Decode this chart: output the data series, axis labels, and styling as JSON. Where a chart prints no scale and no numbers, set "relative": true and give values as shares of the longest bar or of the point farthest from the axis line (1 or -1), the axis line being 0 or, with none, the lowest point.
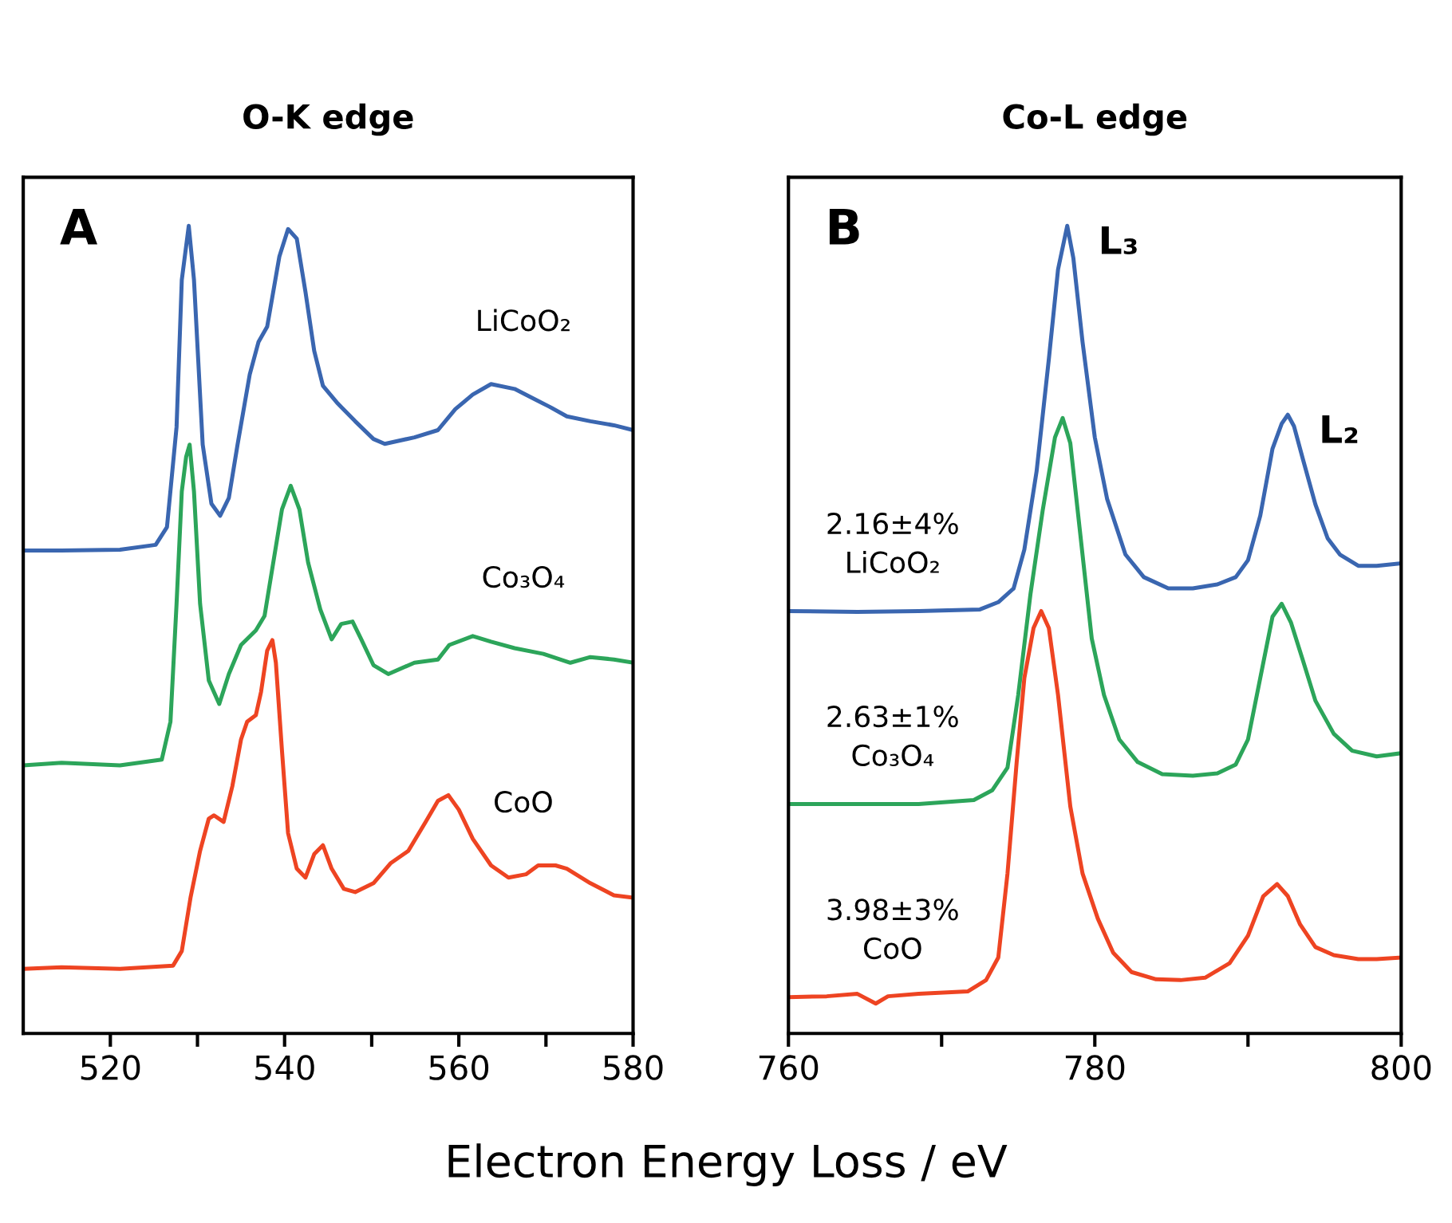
{
  "chart_data": [
    {
      "type": "line",
      "title": "O-K edge",
      "xlabel": "Electron Energy Loss / eV",
      "relative": true,
      "xlim": [
        510,
        580
      ],
      "xticks": [
        520,
        {
          "value": 530,
          "label": null
        },
        540,
        {
          "value": 550,
          "label": null
        },
        560,
        {
          "value": 570,
          "label": null
        },
        580
      ],
      "tick_labels": "x",
      "grid": false,
      "legend": false,
      "line_style": "solid",
      "marker": "none",
      "annotations": [
        "A"
      ],
      "series": [
        {
          "name": "LiCoO₂",
          "color": "#3a66b0",
          "x": [
            510.0,
            514.4,
            521.1,
            525.2,
            526.5,
            527.6,
            528.2,
            529.0,
            529.6,
            530.6,
            531.6,
            532.6,
            533.6,
            534.6,
            536.0,
            537.0,
            538.0,
            539.4,
            540.4,
            541.4,
            542.4,
            543.4,
            544.4,
            546.1,
            548.1,
            550.2,
            551.5,
            554.9,
            557.6,
            559.6,
            561.6,
            563.7,
            566.4,
            568.4,
            570.4,
            572.4,
            575.1,
            577.8,
            580.0
          ],
          "values": [
            0.598,
            0.598,
            0.599,
            0.605,
            0.627,
            0.751,
            0.933,
            1.0,
            0.933,
            0.729,
            0.656,
            0.641,
            0.663,
            0.729,
            0.816,
            0.856,
            0.875,
            0.962,
            0.996,
            0.984,
            0.918,
            0.845,
            0.802,
            0.78,
            0.758,
            0.736,
            0.73,
            0.738,
            0.747,
            0.773,
            0.791,
            0.804,
            0.798,
            0.787,
            0.776,
            0.764,
            0.758,
            0.753,
            0.747
          ]
        },
        {
          "name": "Co₃O₄",
          "color": "#2ca55a",
          "x": [
            510.0,
            514.4,
            521.1,
            525.9,
            526.9,
            527.6,
            528.2,
            528.7,
            529.1,
            529.6,
            530.3,
            531.3,
            532.5,
            533.6,
            535.0,
            536.7,
            537.7,
            538.7,
            539.7,
            540.7,
            541.7,
            542.7,
            544.1,
            545.4,
            546.5,
            547.8,
            548.8,
            550.2,
            551.9,
            554.9,
            557.6,
            558.9,
            561.6,
            563.7,
            566.4,
            569.7,
            572.8,
            575.1,
            577.8,
            580.0
          ],
          "values": [
            0.332,
            0.335,
            0.332,
            0.339,
            0.386,
            0.532,
            0.671,
            0.714,
            0.729,
            0.671,
            0.532,
            0.437,
            0.408,
            0.445,
            0.481,
            0.499,
            0.517,
            0.583,
            0.649,
            0.678,
            0.649,
            0.583,
            0.525,
            0.488,
            0.507,
            0.51,
            0.488,
            0.456,
            0.445,
            0.459,
            0.463,
            0.481,
            0.492,
            0.485,
            0.477,
            0.47,
            0.459,
            0.466,
            0.463,
            0.459
          ]
        },
        {
          "name": "CoO",
          "color": "#ee4422",
          "x": [
            510.0,
            514.4,
            521.1,
            527.2,
            528.2,
            529.2,
            530.3,
            531.3,
            531.9,
            533.0,
            534.0,
            535.0,
            535.7,
            536.7,
            537.3,
            538.0,
            538.6,
            539.0,
            539.7,
            540.4,
            541.4,
            542.4,
            543.4,
            544.4,
            545.4,
            546.8,
            548.1,
            550.2,
            552.2,
            554.2,
            556.2,
            557.6,
            558.8,
            560.0,
            561.6,
            563.7,
            565.7,
            567.7,
            569.1,
            571.1,
            572.4,
            575.1,
            577.8,
            580.0
          ],
          "values": [
            0.08,
            0.082,
            0.08,
            0.084,
            0.102,
            0.168,
            0.226,
            0.266,
            0.27,
            0.262,
            0.306,
            0.364,
            0.386,
            0.394,
            0.423,
            0.474,
            0.487,
            0.459,
            0.35,
            0.248,
            0.204,
            0.193,
            0.222,
            0.233,
            0.204,
            0.179,
            0.175,
            0.186,
            0.211,
            0.226,
            0.262,
            0.288,
            0.295,
            0.277,
            0.241,
            0.208,
            0.193,
            0.197,
            0.208,
            0.208,
            0.204,
            0.186,
            0.171,
            0.168
          ]
        }
      ]
    },
    {
      "type": "line",
      "title": "Co-L edge",
      "relative": true,
      "xlim": [
        760,
        800
      ],
      "xticks": [
        760,
        {
          "value": 770,
          "label": null
        },
        780,
        {
          "value": 790,
          "label": null
        },
        800
      ],
      "tick_labels": "x",
      "grid": false,
      "legend": false,
      "line_style": "solid",
      "marker": "none",
      "annotations": [
        "B",
        {
          "text": "L₃",
          "x": 778.2,
          "y": 1.0
        },
        {
          "text": "L₂",
          "x": 792.6,
          "y": 0.766
        }
      ],
      "series": [
        {
          "name": "2.16±4%\nLiCoO₂",
          "color": "#3a66b0",
          "x": [
            760.0,
            764.5,
            768.5,
            772.5,
            773.7,
            774.7,
            775.4,
            776.2,
            777.0,
            777.6,
            778.2,
            778.6,
            779.2,
            780.0,
            780.8,
            782.0,
            783.2,
            784.8,
            786.4,
            788.0,
            789.2,
            790.0,
            790.8,
            791.6,
            792.2,
            792.6,
            793.0,
            793.6,
            794.4,
            795.2,
            796.0,
            797.2,
            798.4,
            800.0
          ],
          "values": [
            0.523,
            0.522,
            0.523,
            0.525,
            0.534,
            0.551,
            0.599,
            0.696,
            0.835,
            0.946,
            1.0,
            0.96,
            0.856,
            0.738,
            0.662,
            0.593,
            0.565,
            0.551,
            0.551,
            0.556,
            0.565,
            0.586,
            0.641,
            0.724,
            0.755,
            0.766,
            0.752,
            0.71,
            0.655,
            0.613,
            0.593,
            0.579,
            0.579,
            0.582
          ]
        },
        {
          "name": "2.63±1%\nCo₃O₄",
          "color": "#2ca55a",
          "x": [
            760.0,
            764.5,
            768.5,
            772.1,
            773.3,
            774.3,
            775.0,
            775.8,
            776.6,
            777.4,
            777.9,
            778.4,
            779.0,
            779.8,
            780.6,
            781.6,
            782.8,
            784.4,
            786.4,
            788.0,
            789.2,
            790.0,
            790.8,
            791.6,
            792.2,
            792.8,
            793.6,
            794.4,
            795.6,
            796.8,
            798.4,
            800.0
          ],
          "values": [
            0.284,
            0.284,
            0.284,
            0.289,
            0.301,
            0.329,
            0.419,
            0.544,
            0.648,
            0.738,
            0.762,
            0.731,
            0.627,
            0.489,
            0.419,
            0.364,
            0.336,
            0.321,
            0.319,
            0.322,
            0.333,
            0.364,
            0.44,
            0.516,
            0.532,
            0.509,
            0.461,
            0.412,
            0.371,
            0.35,
            0.343,
            0.347
          ]
        },
        {
          "name": "3.98±3%\nCoO",
          "color": "#ee4422",
          "x": [
            760.0,
            762.5,
            764.5,
            765.7,
            766.5,
            768.5,
            771.7,
            772.9,
            773.7,
            774.3,
            774.9,
            775.4,
            776.0,
            776.5,
            777.0,
            777.6,
            778.4,
            779.2,
            780.2,
            781.2,
            782.4,
            784.0,
            785.6,
            787.2,
            788.8,
            790.0,
            791.0,
            791.9,
            792.6,
            793.4,
            794.4,
            795.6,
            797.2,
            798.4,
            800.0
          ],
          "values": [
            0.045,
            0.046,
            0.049,
            0.037,
            0.046,
            0.049,
            0.052,
            0.066,
            0.094,
            0.198,
            0.336,
            0.44,
            0.502,
            0.523,
            0.502,
            0.419,
            0.281,
            0.198,
            0.142,
            0.1,
            0.076,
            0.067,
            0.066,
            0.069,
            0.087,
            0.121,
            0.17,
            0.185,
            0.17,
            0.135,
            0.107,
            0.097,
            0.092,
            0.092,
            0.094
          ]
        }
      ]
    }
  ]
}
